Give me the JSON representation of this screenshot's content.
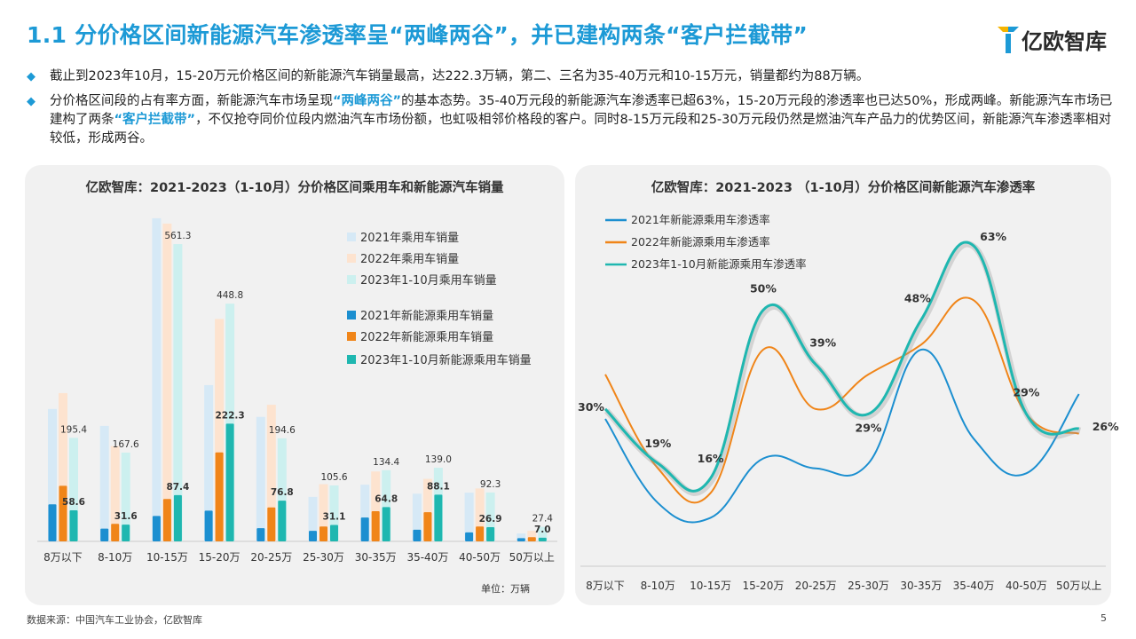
{
  "header": {
    "title": "1.1 分价格区间新能源汽车渗透率呈“两峰两谷”，并已建构两条“客户拦截带”",
    "logo_text": "亿欧智库"
  },
  "bullets": {
    "b1": "截止到2023年10月，15-20万元价格区间的新能源汽车销量最高，达222.3万辆，第二、三名为35-40万元和10-15万元，销量都约为88万辆。",
    "b2_part1": "分价格区间段的占有率方面，新能源汽车市场呈现",
    "b2_hl1": "“两峰两谷”",
    "b2_part2": "的基本态势。35-40万元段的新能源汽车渗透率已超63%，15-20万元段的渗透率也已达50%，形成两峰。新能源汽车市场已建构了两条",
    "b2_hl2": "“客户拦截带”",
    "b2_part3": "，不仅抢夺同价位段内燃油汽车市场份额，也虹吸相邻价格段的客户。同时8-15万元段和25-30万元段仍然是燃油汽车产品力的优势区间，新能源汽车渗透率相对较低，形成两谷。"
  },
  "colors": {
    "accent": "#1d9ad6",
    "total2021": "#d6e9f6",
    "total2022": "#fde3cf",
    "total2023": "#ccf0ef",
    "nev2021": "#1c8fd0",
    "nev2022": "#f08519",
    "nev2023": "#1fb7b0"
  },
  "chart_data": [
    {
      "type": "bar",
      "title": "亿欧智库：2021-2023（1-10月）分价格区间乘用车和新能源汽车销量",
      "unit_label": "单位：万辆",
      "categories": [
        "8万以下",
        "8-10万",
        "10-15万",
        "15-20万",
        "20-25万",
        "25-30万",
        "30-35万",
        "35-40万",
        "40-50万",
        "50万以上"
      ],
      "ylim": [
        0,
        620
      ],
      "series": [
        {
          "name": "2021年乘用车销量",
          "kind": "total",
          "values": [
            250,
            218,
            610,
            295,
            235,
            84,
            107,
            90,
            92,
            15
          ]
        },
        {
          "name": "2022年乘用车销量",
          "kind": "total",
          "values": [
            280,
            180,
            600,
            420,
            258,
            108,
            132,
            118,
            100,
            20
          ]
        },
        {
          "name": "2023年1-10月乘用车销量",
          "kind": "total",
          "values": [
            195.4,
            167.6,
            561.3,
            448.8,
            194.6,
            105.6,
            134.4,
            139.0,
            92.3,
            27.4
          ]
        },
        {
          "name": "2021年新能源乘用车销量",
          "kind": "nev",
          "values": [
            70,
            24,
            48,
            58,
            25,
            20,
            45,
            22,
            17,
            6
          ]
        },
        {
          "name": "2022年新能源乘用车销量",
          "kind": "nev",
          "values": [
            105,
            33,
            80,
            168,
            64,
            28,
            57,
            55,
            28,
            8
          ]
        },
        {
          "name": "2023年1-10月新能源乘用车销量",
          "kind": "nev",
          "values": [
            58.6,
            31.6,
            87.4,
            222.3,
            76.8,
            31.1,
            64.8,
            88.1,
            26.9,
            7.0
          ]
        }
      ],
      "labels_2023_total": [
        "195.4",
        "167.6",
        "561.3",
        "448.8",
        "194.6",
        "105.6",
        "134.4",
        "139.0",
        "92.3",
        "27.4"
      ],
      "labels_2023_nev": [
        "58.6",
        "31.6",
        "87.4",
        "222.3",
        "76.8",
        "31.1",
        "64.8",
        "88.1",
        "26.9",
        "7.0"
      ]
    },
    {
      "type": "line",
      "title": "亿欧智库：2021-2023 （1-10月）分价格区间新能源汽车渗透率",
      "categories": [
        "8万以下",
        "8-10万",
        "10-15万",
        "15-20万",
        "20-25万",
        "25-30万",
        "30-35万",
        "35-40万",
        "40-50万",
        "50万以上"
      ],
      "ylim": [
        0,
        70
      ],
      "series": [
        {
          "name": "2021年新能源乘用车渗透率",
          "color": "#1c8fd0",
          "values": [
            28,
            11,
            8,
            20,
            18,
            19,
            42,
            24,
            17,
            33
          ]
        },
        {
          "name": "2022年新能源乘用车渗透率",
          "color": "#f08519",
          "values": [
            37,
            18,
            13,
            42,
            30,
            37,
            43,
            52,
            29,
            25
          ]
        },
        {
          "name": "2023年1-10月新能源乘用车渗透率",
          "color": "#1fb7b0",
          "values": [
            30,
            19,
            16,
            50,
            39,
            29,
            48,
            63,
            29,
            26
          ]
        }
      ],
      "data_labels": [
        "30%",
        "19%",
        "16%",
        "50%",
        "39%",
        "29%",
        "48%",
        "63%",
        "29%",
        "26%"
      ]
    }
  ],
  "footer": {
    "source": "数据来源：中国汽车工业协会，亿欧智库",
    "page_number": "5"
  }
}
